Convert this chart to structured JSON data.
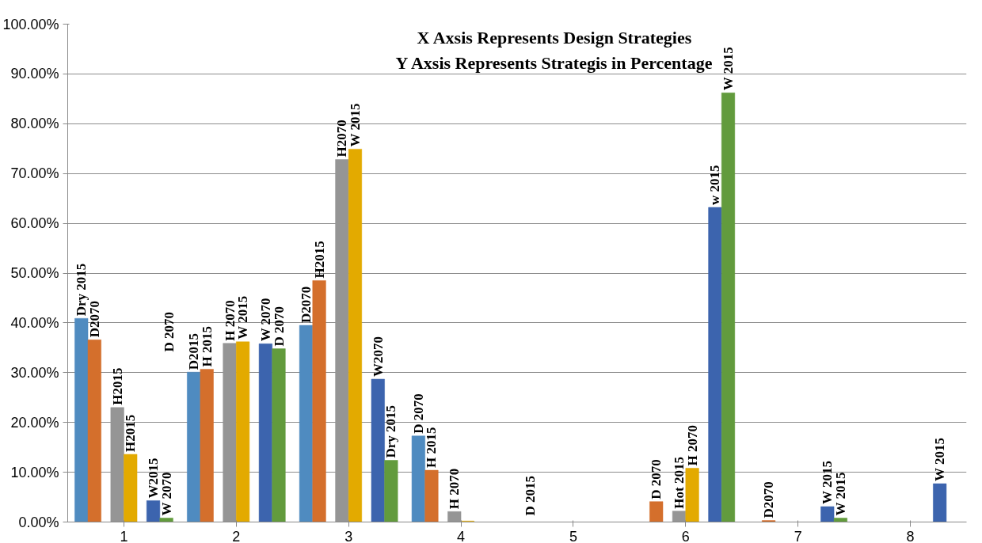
{
  "chart_data": {
    "type": "bar",
    "title": "X Axsis Represents Design Strategies",
    "subtitle": "Y Axsis Represents Strategis in Percentage",
    "categories": [
      "1",
      "2",
      "3",
      "4",
      "5",
      "6",
      "7",
      "8"
    ],
    "series": [
      {
        "color": "#4f8bc0",
        "values": [
          40.9,
          30.1,
          39.5,
          17.3,
          null,
          null,
          null,
          null
        ],
        "value_labels": [
          "Dry 2015",
          "D2015",
          "D2070",
          "D 2070",
          null,
          null,
          null,
          null
        ]
      },
      {
        "color": "#d46f2c",
        "values": [
          36.6,
          30.7,
          48.5,
          10.4,
          null,
          4.1,
          0.3,
          null
        ],
        "value_labels": [
          "D2070",
          "H 2015",
          "H2015",
          "H 2015",
          null,
          "D 2070",
          "D2070",
          null
        ]
      },
      {
        "color": "#959595",
        "values": [
          23.0,
          35.9,
          72.8,
          2.1,
          null,
          2.2,
          null,
          null
        ],
        "value_labels": [
          "H2015",
          "H 2070",
          "H2070",
          "H 2070",
          null,
          "Hot 2015",
          null,
          null
        ]
      },
      {
        "color": "#e3aa00",
        "values": [
          13.6,
          36.2,
          74.9,
          0.2,
          null,
          10.8,
          null,
          null
        ],
        "value_labels": [
          "H2015",
          "W  2015",
          "W 2015",
          null,
          null,
          "H 2070",
          null,
          null
        ]
      },
      {
        "color": "#3c64ae",
        "values": [
          4.3,
          35.8,
          28.7,
          null,
          null,
          63.2,
          3.1,
          7.7
        ],
        "value_labels": [
          "W2015",
          "W  2070",
          "W2070",
          null,
          null,
          "w  2015",
          "W  2015",
          "W 2015"
        ]
      },
      {
        "color": "#629b3d",
        "values": [
          0.8,
          34.8,
          12.4,
          null,
          null,
          86.2,
          0.8,
          null
        ],
        "value_labels": [
          "W 2070",
          "D 2070",
          "Dry 2015",
          null,
          null,
          "W 2015",
          "W 2015",
          null
        ]
      }
    ],
    "annotations": [
      "D 2070",
      "D 2015"
    ],
    "ylim": [
      0,
      100
    ],
    "yticks": [
      {
        "value": 0,
        "label": "0.00%"
      },
      {
        "value": 10,
        "label": "10.00%"
      },
      {
        "value": 20,
        "label": "20.00%"
      },
      {
        "value": 30,
        "label": "30.00%"
      },
      {
        "value": 40,
        "label": "40.00%"
      },
      {
        "value": 50,
        "label": "50.00%"
      },
      {
        "value": 60,
        "label": "60.00%"
      },
      {
        "value": 70,
        "label": "70.00%"
      },
      {
        "value": 80,
        "label": "80.00%"
      },
      {
        "value": 90,
        "label": "90.00%"
      },
      {
        "value": 100,
        "label": "100.00%"
      }
    ],
    "grid": "y"
  }
}
